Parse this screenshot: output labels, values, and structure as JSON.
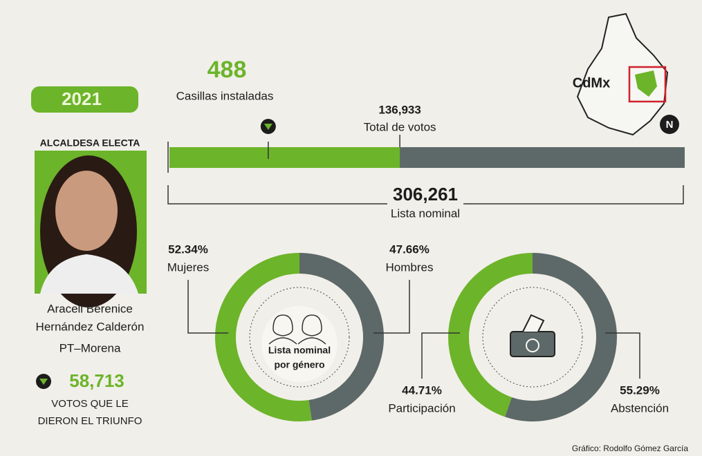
{
  "year": "2021",
  "casillas": {
    "number": "488",
    "label": "Casillas instaladas"
  },
  "candidate": {
    "heading": "ALCALDESA ELECTA",
    "name_lines": [
      "Araceli Berenice",
      "Hernández Calderón"
    ],
    "party": "PT–Morena",
    "votes": {
      "value": 58713,
      "label": "58,713"
    },
    "caption_lines": [
      "VOTOS QUE LE",
      "DIERON EL TRIUNFO"
    ]
  },
  "map_label": "CdMx",
  "north": "N",
  "credit": "Gráfico: Rodolfo Gómez García",
  "chart_data": [
    {
      "type": "bar",
      "categories": [
        "Total de votos",
        "Lista nominal"
      ],
      "values": [
        136933,
        306261
      ],
      "value_labels": [
        "136,933",
        "306,261"
      ],
      "colors": [
        "#6cb42a",
        "#5d6968"
      ]
    },
    {
      "type": "donut",
      "center_label": [
        "Lista nominal",
        "por género"
      ],
      "categories": [
        "Mujeres",
        "Hombres"
      ],
      "values": [
        52.34,
        47.66
      ],
      "value_labels": [
        "52.34%",
        "47.66%"
      ],
      "colors": [
        "#6cb42a",
        "#5d6968"
      ]
    },
    {
      "type": "donut",
      "categories": [
        "Participación",
        "Abstención"
      ],
      "values": [
        44.71,
        55.29
      ],
      "value_labels": [
        "44.71%",
        "55.29%"
      ],
      "colors": [
        "#6cb42a",
        "#5d6968"
      ]
    }
  ]
}
